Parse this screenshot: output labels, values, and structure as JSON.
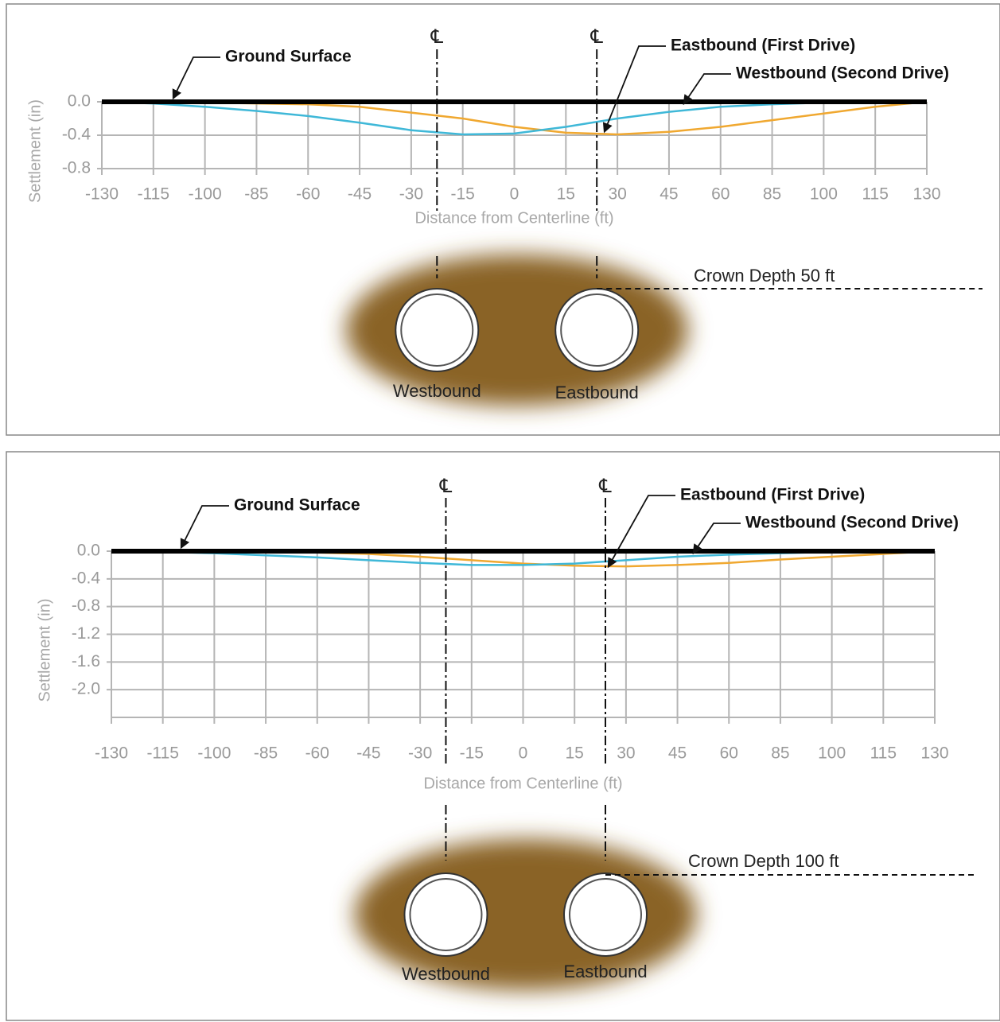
{
  "chart_data": [
    {
      "type": "line",
      "categories": [
        "-130",
        "-115",
        "-100",
        "-85",
        "-60",
        "-45",
        "-30",
        "-15",
        "0",
        "15",
        "30",
        "45",
        "60",
        "85",
        "100",
        "115",
        "130"
      ],
      "series": [
        {
          "name": "Ground Surface",
          "color": "#000000",
          "values": [
            0,
            0,
            0,
            0,
            0,
            0,
            0,
            0,
            0,
            0,
            0,
            0,
            0,
            0,
            0,
            0,
            0
          ]
        },
        {
          "name": "Eastbound (First Drive)",
          "color": "#f0a830",
          "values": [
            0,
            -0.005,
            -0.01,
            -0.02,
            -0.03,
            -0.06,
            -0.13,
            -0.2,
            -0.3,
            -0.37,
            -0.39,
            -0.36,
            -0.3,
            -0.22,
            -0.14,
            -0.06,
            0
          ]
        },
        {
          "name": "Westbound (Second Drive)",
          "color": "#3fb8d8",
          "values": [
            0,
            -0.02,
            -0.06,
            -0.11,
            -0.17,
            -0.25,
            -0.34,
            -0.39,
            -0.38,
            -0.3,
            -0.2,
            -0.12,
            -0.06,
            -0.03,
            -0.01,
            0,
            0
          ]
        }
      ],
      "ylim": [
        -0.8,
        0
      ],
      "yticks": [
        {
          "value": 0,
          "label": "0.0"
        },
        -0.4,
        -0.8
      ],
      "grid": true,
      "xlabel": "Distance from Centerline (ft)",
      "ylabel": "Settlement (in)",
      "centerline_symbol": "℄",
      "tunnel_labels": [
        "Westbound",
        "Eastbound"
      ],
      "crown_depth": "Crown Depth 50 ft"
    },
    {
      "type": "line",
      "categories": [
        "-130",
        "-115",
        "-100",
        "-85",
        "-60",
        "-45",
        "-30",
        "-15",
        "0",
        "15",
        "30",
        "45",
        "60",
        "85",
        "100",
        "115",
        "130"
      ],
      "series": [
        {
          "name": "Ground Surface",
          "color": "#000000",
          "values": [
            0,
            0,
            0,
            0,
            0,
            0,
            0,
            0,
            0,
            0,
            0,
            0,
            0,
            0,
            0,
            0,
            0
          ]
        },
        {
          "name": "Eastbound (First Drive)",
          "color": "#f0a830",
          "values": [
            0,
            0,
            -0.01,
            -0.01,
            -0.02,
            -0.04,
            -0.08,
            -0.13,
            -0.18,
            -0.21,
            -0.22,
            -0.2,
            -0.17,
            -0.12,
            -0.08,
            -0.04,
            0
          ]
        },
        {
          "name": "Westbound (Second Drive)",
          "color": "#3fb8d8",
          "values": [
            0,
            -0.01,
            -0.03,
            -0.06,
            -0.09,
            -0.13,
            -0.17,
            -0.2,
            -0.2,
            -0.18,
            -0.13,
            -0.08,
            -0.05,
            -0.03,
            -0.01,
            0,
            0
          ]
        }
      ],
      "ylim": [
        -2.4,
        0
      ],
      "yticks": [
        {
          "value": 0,
          "label": "0.0"
        },
        -0.4,
        -0.8,
        -1.2,
        -1.6,
        {
          "value": -2,
          "label": "-2.0"
        }
      ],
      "grid": true,
      "xlabel": "Distance from Centerline (ft)",
      "ylabel": "Settlement (in)",
      "centerline_symbol": "℄",
      "tunnel_labels": [
        "Westbound",
        "Eastbound"
      ],
      "crown_depth": "Crown Depth 100 ft"
    }
  ]
}
